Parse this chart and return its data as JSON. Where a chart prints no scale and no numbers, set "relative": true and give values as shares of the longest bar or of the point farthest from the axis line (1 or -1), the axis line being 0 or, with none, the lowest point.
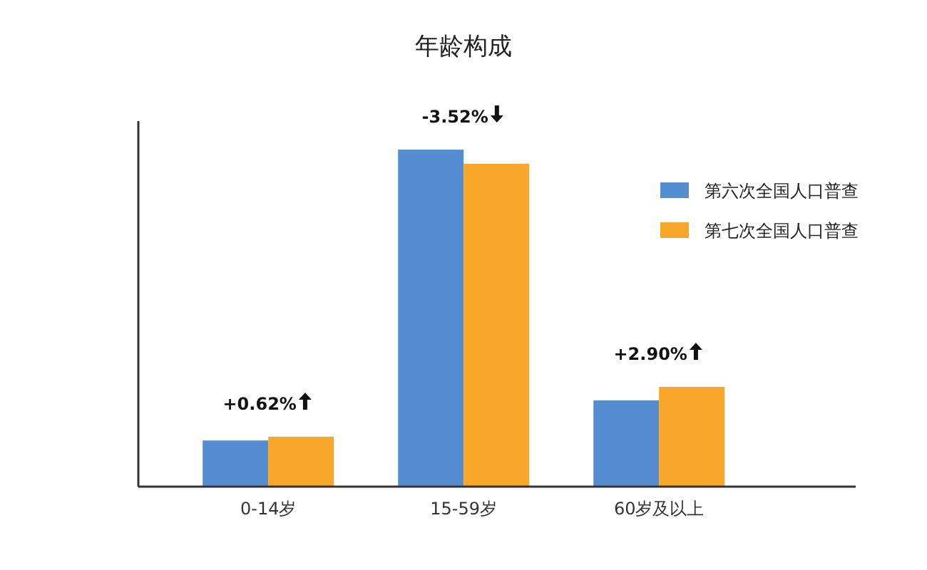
{
  "chart_data": {
    "type": "bar",
    "title": "年龄构成",
    "relative": true,
    "categories": [
      "0-14岁",
      "15-59岁",
      "60岁及以上"
    ],
    "series": [
      {
        "name": "第六次全国人口普查",
        "color": "#548dd0",
        "values": [
          0.137,
          1,
          0.256
        ]
      },
      {
        "name": "第七次全国人口普查",
        "color": "#f9a72b",
        "values": [
          0.148,
          0.958,
          0.296
        ]
      }
    ],
    "annotations": [
      {
        "text": "+0.62%",
        "x": "0-14岁",
        "y": 0.148
      },
      {
        "text": "-3.52%",
        "x": "15-59岁",
        "y": 1
      },
      {
        "text": "+2.90%",
        "x": "60岁及以上",
        "y": 0.296
      }
    ],
    "legend": "right"
  }
}
